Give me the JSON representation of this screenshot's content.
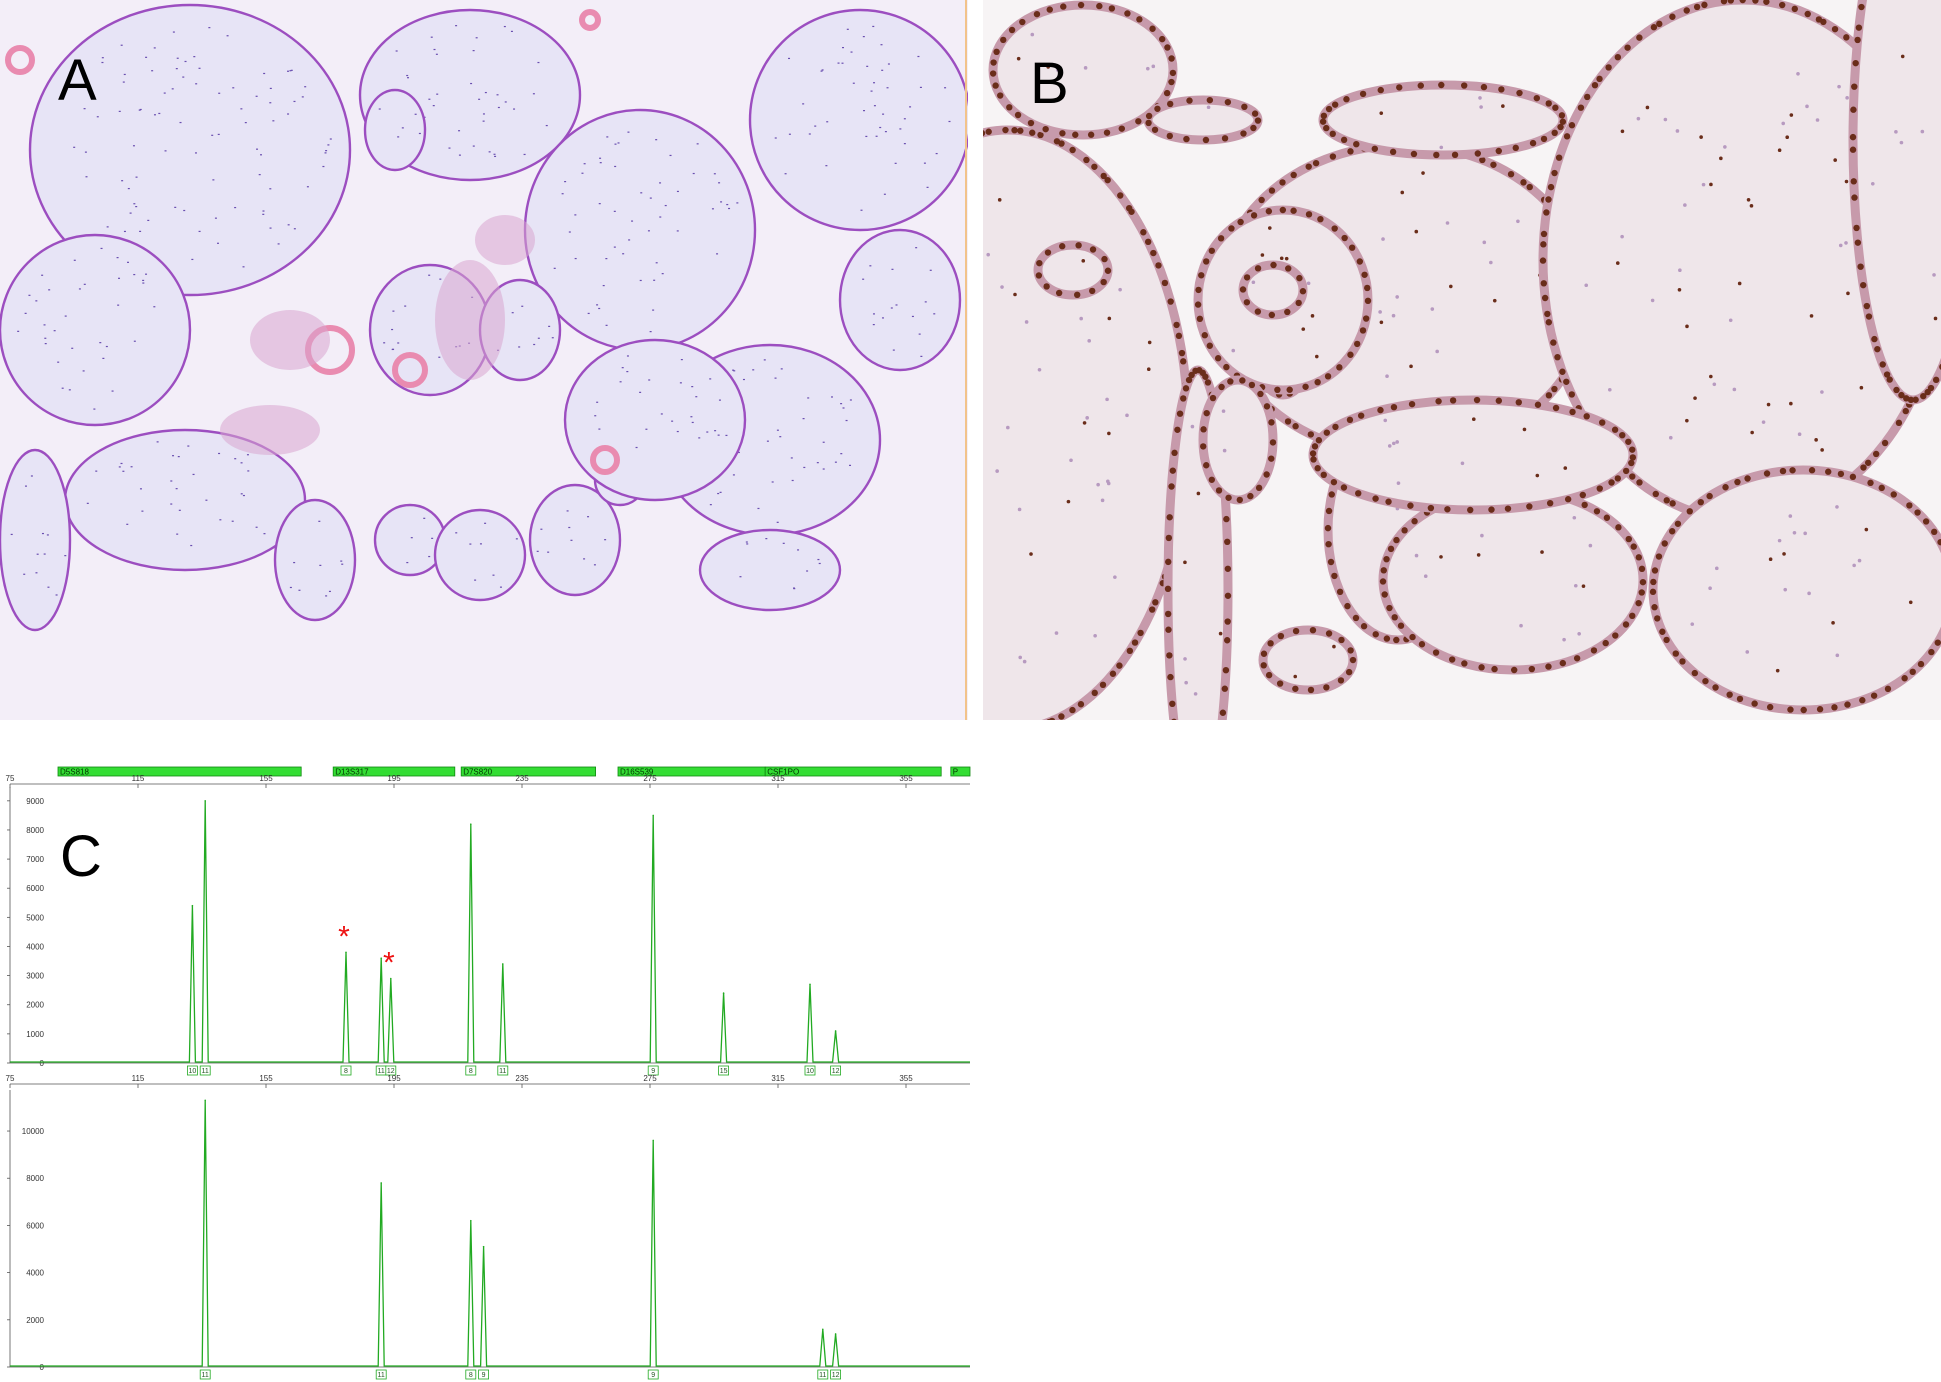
{
  "panels": {
    "a": {
      "label": "A"
    },
    "b": {
      "label": "B"
    },
    "c": {
      "label": "C"
    }
  },
  "colors": {
    "he_background": "#f3eef8",
    "he_stroma": "#e7e4f6",
    "he_trophoblast": "#9c4ec0",
    "he_pink": "#e98bb0",
    "ihc_background": "#f7f4f5",
    "ihc_stroma": "#efe6ea",
    "ihc_nucleus": "#6a2d1a",
    "ihc_border": "#c79aab",
    "trace": "#22aa22",
    "marker_bar": "#33dd33",
    "asterisk": "#ee1111"
  },
  "chart_data": {
    "type": "line",
    "x_axis": {
      "range": [
        75,
        375
      ],
      "ticks": [
        75,
        115,
        155,
        195,
        235,
        275,
        315,
        355
      ]
    },
    "markers": [
      {
        "name": "D5S818",
        "start": 90,
        "end": 166
      },
      {
        "name": "D13S317",
        "start": 176,
        "end": 214
      },
      {
        "name": "D7S820",
        "start": 216,
        "end": 258
      },
      {
        "name": "D16S539",
        "start": 265,
        "end": 311
      },
      {
        "name": "CSF1PO",
        "start": 311,
        "end": 366
      },
      {
        "name": "P",
        "start": 369,
        "end": 376
      }
    ],
    "plots": [
      {
        "ylim": [
          0,
          9200
        ],
        "yticks": [
          0,
          1000,
          2000,
          3000,
          4000,
          5000,
          6000,
          7000,
          8000,
          9000
        ],
        "peaks": [
          {
            "x": 132,
            "y": 5400,
            "allele": "10"
          },
          {
            "x": 136,
            "y": 9000,
            "allele": "11"
          },
          {
            "x": 180,
            "y": 3800,
            "allele": "8",
            "asterisk": true
          },
          {
            "x": 191,
            "y": 3600,
            "allele": "11"
          },
          {
            "x": 194,
            "y": 2900,
            "allele": "12",
            "asterisk": true
          },
          {
            "x": 219,
            "y": 8200,
            "allele": "8"
          },
          {
            "x": 229,
            "y": 3400,
            "allele": "11"
          },
          {
            "x": 276,
            "y": 8500,
            "allele": "9"
          },
          {
            "x": 298,
            "y": 2400,
            "allele": "15"
          },
          {
            "x": 325,
            "y": 2700,
            "allele": "10"
          },
          {
            "x": 333,
            "y": 1100,
            "allele": "12"
          }
        ]
      },
      {
        "ylim": [
          0,
          11400
        ],
        "yticks": [
          0,
          2000,
          4000,
          6000,
          8000,
          10000
        ],
        "peaks": [
          {
            "x": 136,
            "y": 11300,
            "allele": "11"
          },
          {
            "x": 191,
            "y": 7800,
            "allele": "11"
          },
          {
            "x": 219,
            "y": 6200,
            "allele": "8"
          },
          {
            "x": 223,
            "y": 5100,
            "allele": "9"
          },
          {
            "x": 276,
            "y": 9600,
            "allele": "9"
          },
          {
            "x": 329,
            "y": 1600,
            "allele": "11"
          },
          {
            "x": 333,
            "y": 1400,
            "allele": "12"
          }
        ]
      }
    ],
    "annotation": "*"
  }
}
